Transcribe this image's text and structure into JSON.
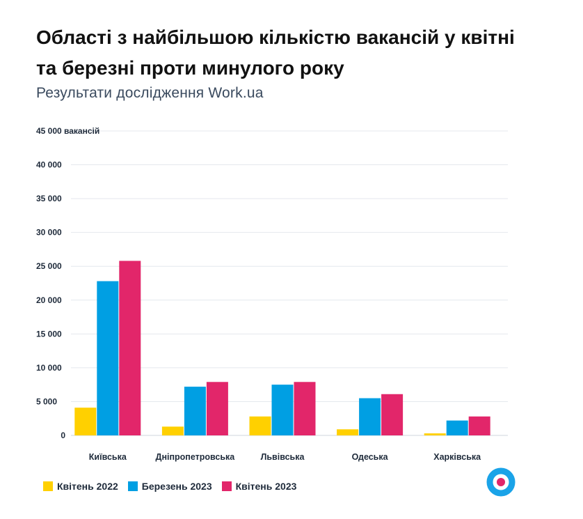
{
  "title": "Області з найбільшою кількістю вакансій у квітні та березні проти минулого року",
  "subtitle": "Результати дослідження Work.ua",
  "colors": {
    "s1": "#ffd000",
    "s2": "#009fe3",
    "s3": "#e2266a",
    "logo": "#1aa3e8",
    "logo_dot": "#e2266a"
  },
  "logo_icon": "work-ua-logo-icon",
  "chart_data": {
    "type": "bar",
    "title": "Області з найбільшою кількістю вакансій у квітні та березні проти минулого року",
    "subtitle": "Результати дослідження Work.ua",
    "categories": [
      "Київська",
      "Дніпропетровська",
      "Львівська",
      "Одеська",
      "Харківська"
    ],
    "ylim": [
      0,
      45000
    ],
    "y_ticks": [
      "0",
      "5 000",
      "10 000",
      "15 000",
      "20 000",
      "25 000",
      "30 000",
      "35 000",
      "40 000",
      "45 000 вакансій"
    ],
    "grid": true,
    "legend_position": "bottom-left",
    "series": [
      {
        "name": "Квітень 2022",
        "values": [
          4100,
          1300,
          2800,
          900,
          300
        ]
      },
      {
        "name": "Березень 2023",
        "values": [
          22800,
          7200,
          7500,
          5500,
          2200
        ]
      },
      {
        "name": "Квітень 2023",
        "values": [
          25800,
          7900,
          7900,
          6100,
          2800
        ]
      }
    ]
  }
}
